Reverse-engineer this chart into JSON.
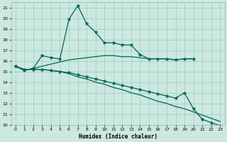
{
  "xlabel": "Humidex (Indice chaleur)",
  "bg_color": "#cce8e0",
  "grid_color": "#99ccbb",
  "line_color": "#006655",
  "xlim": [
    -0.5,
    23.5
  ],
  "ylim": [
    10,
    21.5
  ],
  "xticks": [
    0,
    1,
    2,
    3,
    4,
    5,
    6,
    7,
    8,
    9,
    10,
    11,
    12,
    13,
    14,
    15,
    16,
    17,
    18,
    19,
    20,
    21,
    22,
    23
  ],
  "yticks": [
    10,
    11,
    12,
    13,
    14,
    15,
    16,
    17,
    18,
    19,
    20,
    21
  ],
  "series": [
    {
      "x": [
        0,
        1,
        2,
        3,
        4,
        5,
        6,
        7,
        8,
        9,
        10,
        11,
        12,
        13,
        14,
        15,
        16,
        17,
        18,
        19,
        20
      ],
      "y": [
        15.5,
        15.1,
        15.3,
        16.5,
        16.3,
        16.2,
        19.9,
        21.2,
        19.5,
        18.7,
        17.7,
        17.7,
        17.5,
        17.5,
        16.6,
        16.2,
        16.2,
        16.2,
        16.1,
        16.2,
        16.2
      ],
      "marker": true
    },
    {
      "x": [
        0,
        1,
        2,
        3,
        4,
        5,
        6,
        7,
        8,
        9,
        10,
        11,
        12,
        13,
        14,
        15,
        16,
        17,
        18,
        19,
        20
      ],
      "y": [
        15.5,
        15.1,
        15.3,
        15.5,
        15.7,
        15.9,
        16.1,
        16.2,
        16.3,
        16.4,
        16.5,
        16.5,
        16.4,
        16.4,
        16.3,
        16.2,
        16.2,
        16.2,
        16.1,
        16.2,
        16.2
      ],
      "marker": false
    },
    {
      "x": [
        0,
        1,
        2,
        3,
        4,
        5,
        6,
        7,
        8,
        9,
        10,
        11,
        12,
        13,
        14,
        15,
        16,
        17,
        18,
        19,
        20,
        21,
        22,
        23
      ],
      "y": [
        15.5,
        15.2,
        15.2,
        15.2,
        15.1,
        15.0,
        14.9,
        14.7,
        14.5,
        14.3,
        14.1,
        13.9,
        13.7,
        13.5,
        13.3,
        13.1,
        12.9,
        12.7,
        12.5,
        13.0,
        11.5,
        10.5,
        10.2,
        9.9
      ],
      "marker": true
    },
    {
      "x": [
        0,
        1,
        2,
        3,
        4,
        5,
        6,
        7,
        8,
        9,
        10,
        11,
        12,
        13,
        14,
        15,
        16,
        17,
        18,
        19,
        20,
        21,
        22,
        23
      ],
      "y": [
        15.5,
        15.2,
        15.2,
        15.2,
        15.1,
        15.0,
        14.8,
        14.5,
        14.3,
        14.0,
        13.8,
        13.5,
        13.3,
        13.0,
        12.8,
        12.5,
        12.2,
        12.0,
        11.7,
        11.5,
        11.2,
        10.9,
        10.6,
        10.3
      ],
      "marker": false
    }
  ]
}
